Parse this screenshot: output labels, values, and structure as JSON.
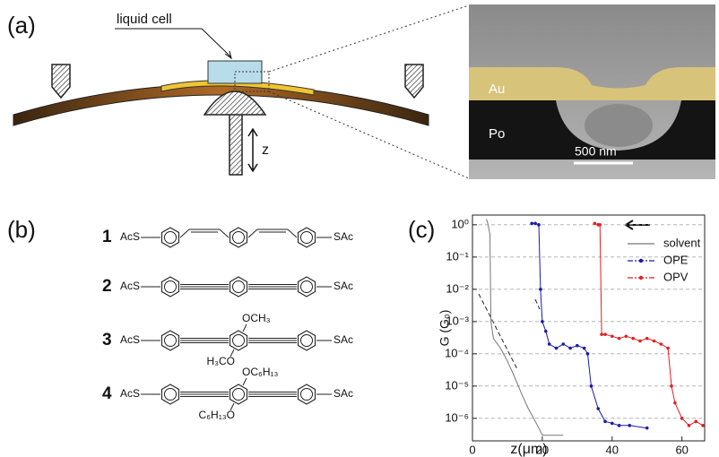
{
  "panel_a": {
    "label": "(a)",
    "liquid_cell": "liquid cell",
    "z_label": "z",
    "sem_top": "Au",
    "sem_bottom": "Po",
    "scale_bar": "500 nm"
  },
  "panel_b": {
    "label": "(b)",
    "molecules": [
      {
        "number": "1",
        "left": "AcS",
        "right": "SAc"
      },
      {
        "number": "2",
        "left": "AcS",
        "right": "SAc"
      },
      {
        "number": "3",
        "left": "AcS",
        "right": "SAc",
        "upper": "OCH₃",
        "lower": "H₃CO"
      },
      {
        "number": "4",
        "left": "AcS",
        "right": "SAc",
        "upper": "OC₆H₁₃",
        "lower": "C₆H₁₃O"
      }
    ]
  },
  "chart_data": {
    "type": "line",
    "panel_label": "(c)",
    "x_label": "z(μm)",
    "y_label": "G (G₀)",
    "xlim": [
      0,
      66.5
    ],
    "xticks": [
      0,
      20,
      40,
      60
    ],
    "ylim": [
      2e-07,
      2
    ],
    "log_y": true,
    "grid": true,
    "legend": "upper right",
    "yticks": [
      {
        "value": 1e-06,
        "label": "10⁻⁶"
      },
      {
        "value": 1e-05,
        "label": "10⁻⁵"
      },
      {
        "value": 0.0001,
        "label": "10⁻⁴"
      },
      {
        "value": 0.001,
        "label": "10⁻³"
      },
      {
        "value": 0.01,
        "label": "10⁻²"
      },
      {
        "value": 0.1,
        "label": "10⁻¹"
      },
      {
        "value": 1,
        "label": "10⁰"
      }
    ],
    "series": [
      {
        "name": "solvent",
        "color": "#777777",
        "x": [
          4,
          4.5,
          5,
          5.3,
          6,
          8,
          10,
          12,
          14,
          16,
          18,
          19,
          20,
          22,
          24,
          26
        ],
        "values": [
          1.5,
          1,
          0.5,
          0.001,
          0.0003,
          0.00015,
          6e-05,
          2e-05,
          6e-06,
          2e-06,
          8e-07,
          5e-07,
          3e-07,
          3e-07,
          3e-07,
          3e-07
        ]
      },
      {
        "name": "OPE",
        "color": "#1a1aa8",
        "x": [
          17,
          18,
          19,
          19.5,
          20,
          21,
          22,
          24,
          26,
          28,
          30,
          32,
          33,
          34,
          36,
          38,
          40,
          42,
          45,
          50
        ],
        "values": [
          1.1,
          1.1,
          1,
          0.01,
          0.001,
          0.0005,
          0.0002,
          0.00015,
          0.0002,
          0.00015,
          0.00018,
          0.00015,
          0.0001,
          1e-05,
          2e-06,
          8e-07,
          7e-07,
          6e-07,
          6e-07,
          5e-07
        ]
      },
      {
        "name": "OPV",
        "color": "#e02020",
        "x": [
          35,
          36,
          36.5,
          37,
          38,
          40,
          42,
          44,
          46,
          48,
          50,
          52,
          54,
          56,
          57,
          58,
          60,
          62,
          64,
          66
        ],
        "values": [
          1.1,
          1,
          1,
          0.0004,
          0.0004,
          0.00035,
          0.0003,
          0.00035,
          0.0003,
          0.00025,
          0.0003,
          0.00025,
          0.0002,
          0.00015,
          1e-05,
          3e-06,
          1e-06,
          6e-07,
          8e-07,
          6e-07
        ]
      }
    ]
  }
}
